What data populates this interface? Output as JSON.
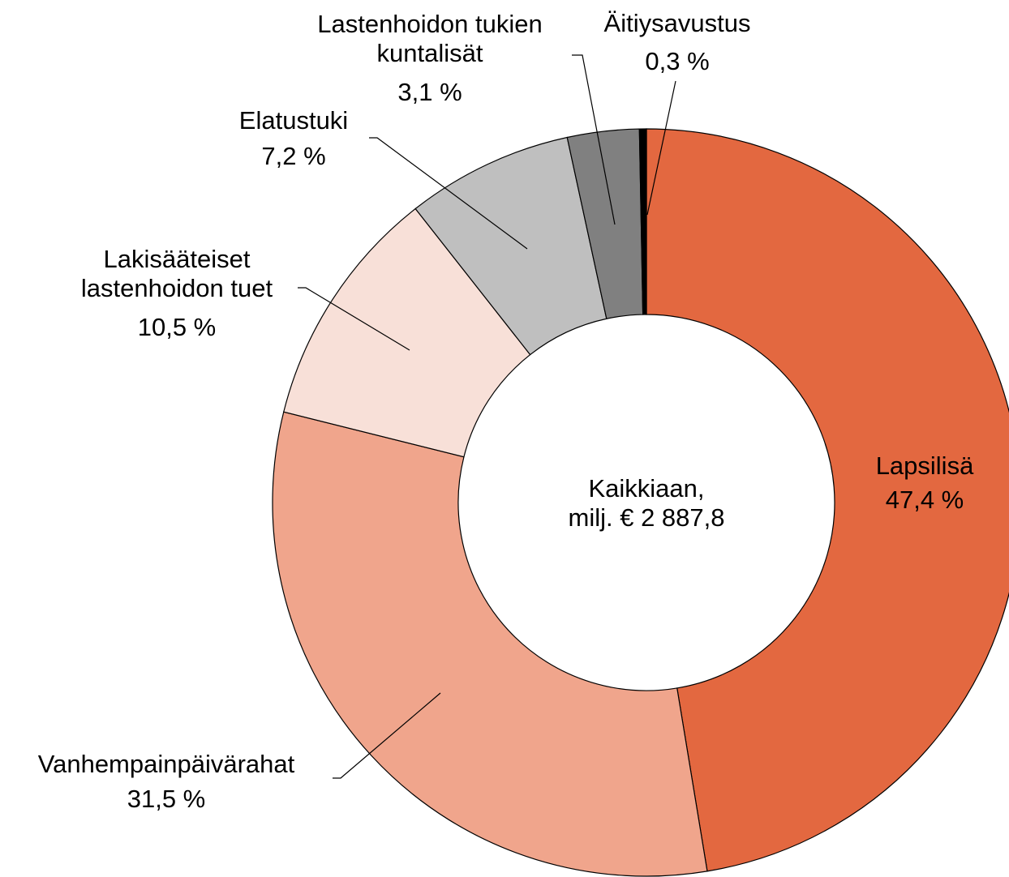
{
  "chart_data": {
    "type": "donut",
    "center_label": "Kaikkiaan,\nmilj. € 2 887,8",
    "categories": [
      "Lapsilisä",
      "Vanhempainpäivärahat",
      "Lakisääteiset\nlastenhoidon tuet",
      "Elatustuki",
      "Lastenhoidon tukien\nkuntalisät",
      "Äitiysavustus"
    ],
    "values": [
      47.4,
      31.5,
      10.5,
      7.2,
      3.1,
      0.3
    ],
    "value_labels": [
      "47,4 %",
      "31,5 %",
      "10,5 %",
      "7,2 %",
      "3,1 %",
      "0,3 %"
    ],
    "colors": [
      "#e36840",
      "#f0a58c",
      "#f8e0d8",
      "#bfbfbf",
      "#808080",
      "#000000"
    ]
  }
}
